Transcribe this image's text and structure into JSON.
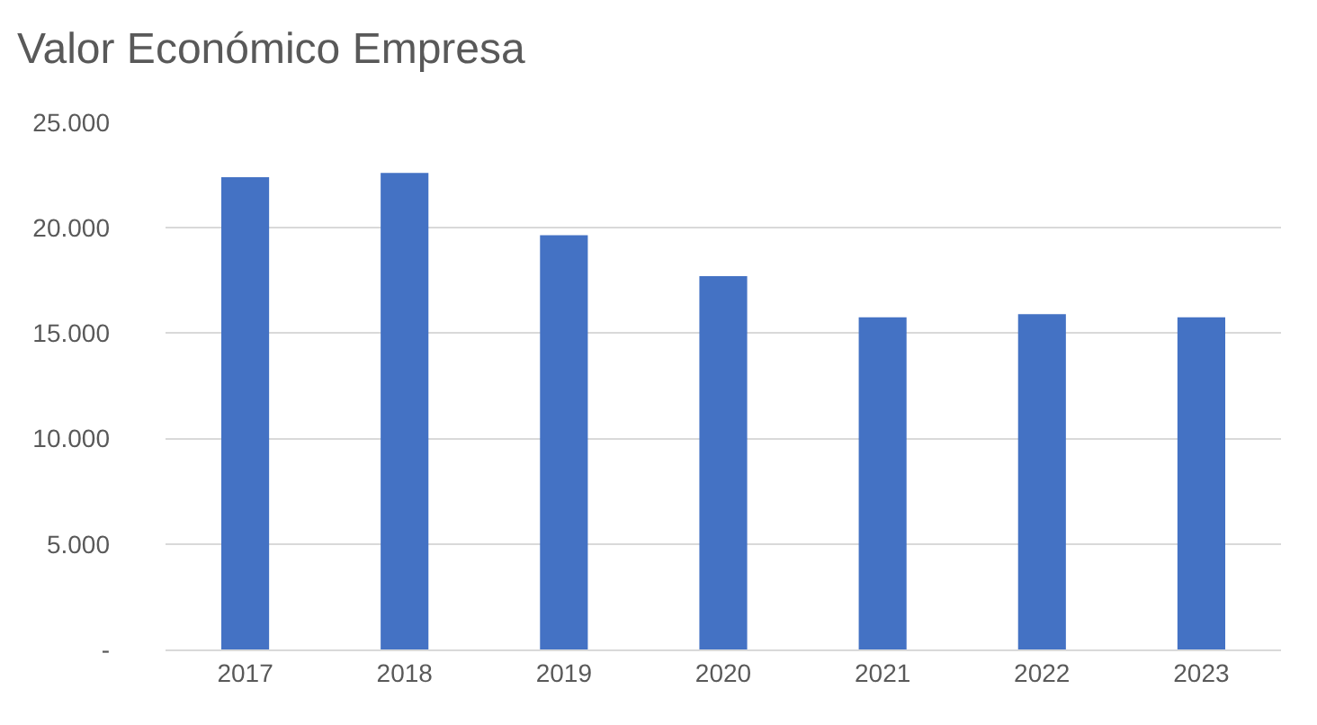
{
  "chart_data": {
    "type": "bar",
    "title": "Valor Económico Empresa",
    "categories": [
      "2017",
      "2018",
      "2019",
      "2020",
      "2021",
      "2022",
      "2023"
    ],
    "values": [
      22400,
      22600,
      19650,
      17700,
      15750,
      15900,
      15750
    ],
    "color": "#4472c4",
    "ylim": [
      0,
      25000
    ],
    "yticks": [
      {
        "value": 0,
        "label": "-"
      },
      {
        "value": 5000,
        "label": "5.000"
      },
      {
        "value": 10000,
        "label": "10.000"
      },
      {
        "value": 15000,
        "label": "15.000"
      },
      {
        "value": 20000,
        "label": "20.000"
      },
      {
        "value": 25000,
        "label": "25.000"
      }
    ],
    "grid": "y",
    "legend": false
  }
}
